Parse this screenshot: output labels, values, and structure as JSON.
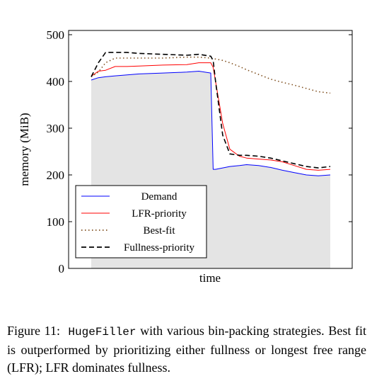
{
  "chart_data": {
    "type": "line",
    "xlabel": "time",
    "ylabel": "memory (MiB)",
    "ylim": [
      0,
      500
    ],
    "yticks": [
      0,
      100,
      200,
      300,
      400,
      500
    ],
    "x_ticks_shown": false,
    "grid": false,
    "legend_position": "bottom-left",
    "x": [
      0,
      0.03,
      0.06,
      0.1,
      0.15,
      0.2,
      0.3,
      0.4,
      0.45,
      0.5,
      0.51,
      0.52,
      0.55,
      0.58,
      0.62,
      0.65,
      0.7,
      0.75,
      0.8,
      0.85,
      0.9,
      0.95,
      1.0
    ],
    "series": [
      {
        "name": "Demand",
        "color": "#0000ff",
        "dash": "solid",
        "fill": "#e4e4e4",
        "values": [
          403,
          408,
          410,
          412,
          414,
          416,
          418,
          420,
          422,
          418,
          212,
          212,
          215,
          218,
          220,
          222,
          220,
          216,
          210,
          205,
          200,
          198,
          200
        ]
      },
      {
        "name": "LFR-priority",
        "color": "#ff0000",
        "dash": "solid",
        "fill": null,
        "values": [
          411,
          422,
          424,
          432,
          432,
          433,
          435,
          436,
          440,
          440,
          430,
          400,
          310,
          255,
          240,
          236,
          234,
          232,
          228,
          220,
          212,
          210,
          212
        ]
      },
      {
        "name": "Best-fit",
        "color": "#7f4f1f",
        "dash": "1.5 3.5",
        "fill": null,
        "values": [
          410,
          420,
          440,
          450,
          450,
          450,
          450,
          452,
          452,
          450,
          448,
          448,
          445,
          440,
          432,
          425,
          415,
          405,
          398,
          392,
          385,
          378,
          375
        ]
      },
      {
        "name": "Fullness-priority",
        "color": "#000000",
        "dash": "7 4",
        "fill": null,
        "values": [
          410,
          440,
          462,
          462,
          462,
          460,
          458,
          456,
          458,
          454,
          445,
          400,
          285,
          245,
          242,
          242,
          240,
          236,
          230,
          224,
          218,
          215,
          218
        ]
      }
    ]
  },
  "caption": {
    "label": "Figure 11:",
    "code": "HugeFiller",
    "text": "with various bin-packing strategies. Best fit is outperformed by prioritizing either fullness or longest free range (LFR); LFR dominates fullness."
  }
}
